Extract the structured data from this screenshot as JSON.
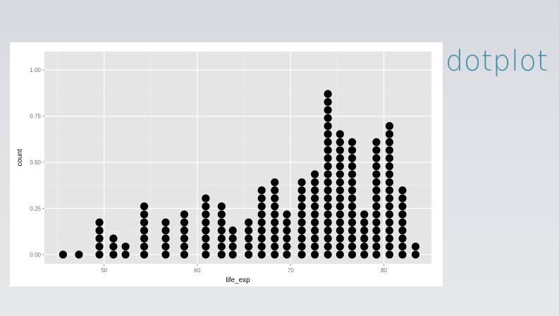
{
  "slide": {
    "title": "dotplot"
  },
  "colors": {
    "title": "#3f8fa6",
    "panel": "#e5e5e5",
    "grid_major": "#ffffff",
    "grid_minor": "#f2f2f2",
    "dots": "#000000",
    "tick_text": "#6e6e6e"
  },
  "chart_data": {
    "type": "dotplot",
    "title": "",
    "xlabel": "life_exp",
    "ylabel": "count",
    "xlim": [
      43.6,
      85.1
    ],
    "ylim": [
      -0.05,
      1.1
    ],
    "x_ticks": [
      50,
      60,
      70,
      80
    ],
    "x_tick_labels": [
      "50",
      "60",
      "70",
      "80"
    ],
    "y_ticks": [
      0.0,
      0.25,
      0.5,
      0.75,
      1.0
    ],
    "y_tick_labels": [
      "0.00",
      "0.25",
      "0.50",
      "0.75",
      "1.00"
    ],
    "grid": true,
    "dot_stack_unit": 0.0435,
    "stacks": [
      {
        "x": 45.6,
        "count": 1
      },
      {
        "x": 47.3,
        "count": 1
      },
      {
        "x": 49.5,
        "count": 5
      },
      {
        "x": 51.0,
        "count": 3
      },
      {
        "x": 52.3,
        "count": 2
      },
      {
        "x": 54.3,
        "count": 7
      },
      {
        "x": 56.6,
        "count": 5
      },
      {
        "x": 58.6,
        "count": 6
      },
      {
        "x": 60.9,
        "count": 8
      },
      {
        "x": 62.6,
        "count": 7
      },
      {
        "x": 63.8,
        "count": 4
      },
      {
        "x": 65.5,
        "count": 5
      },
      {
        "x": 66.9,
        "count": 9
      },
      {
        "x": 68.3,
        "count": 10
      },
      {
        "x": 69.6,
        "count": 6
      },
      {
        "x": 71.2,
        "count": 10
      },
      {
        "x": 72.6,
        "count": 11
      },
      {
        "x": 74.0,
        "count": 21
      },
      {
        "x": 75.3,
        "count": 16
      },
      {
        "x": 76.6,
        "count": 15
      },
      {
        "x": 77.9,
        "count": 6
      },
      {
        "x": 79.2,
        "count": 15
      },
      {
        "x": 80.6,
        "count": 17
      },
      {
        "x": 82.0,
        "count": 9
      },
      {
        "x": 83.4,
        "count": 2
      }
    ]
  }
}
